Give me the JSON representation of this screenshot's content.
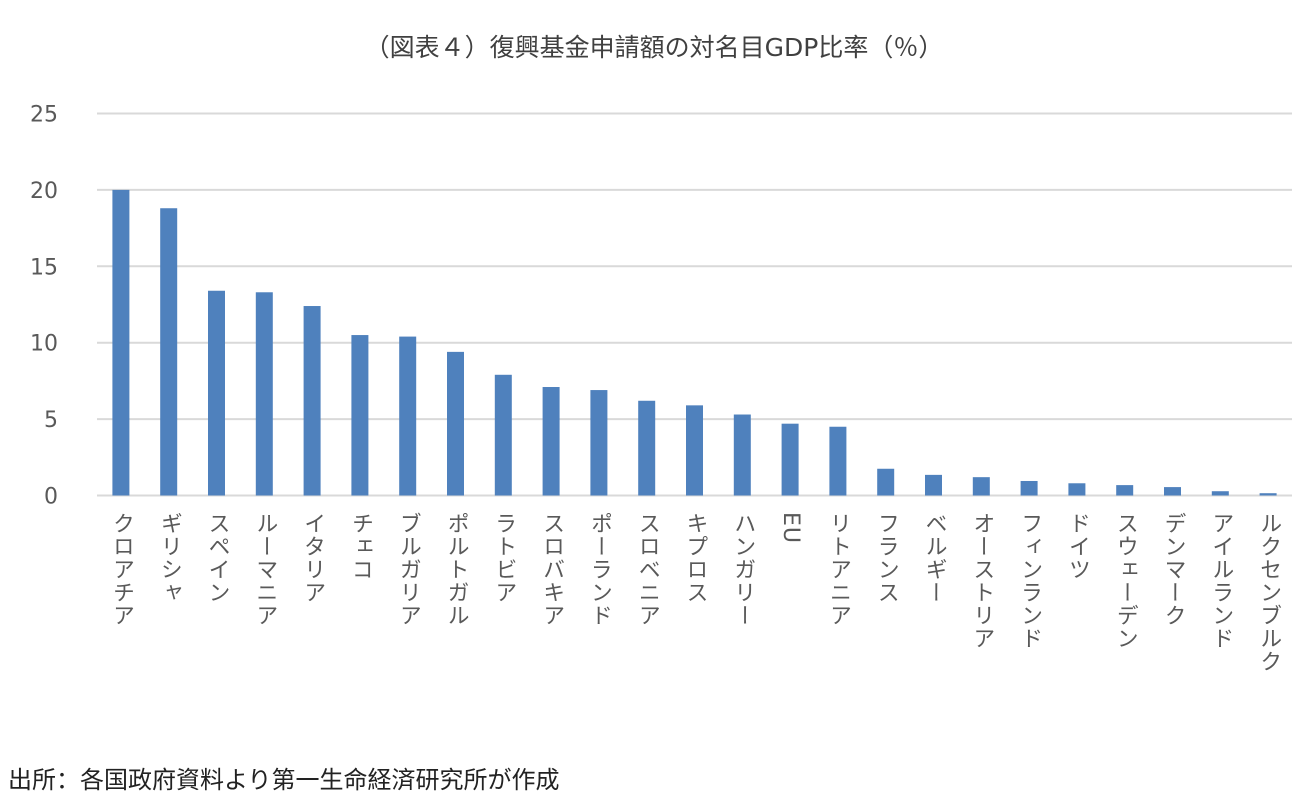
{
  "chart_data": {
    "type": "bar",
    "title": "（図表４）復興基金申請額の対名目GDP比率（％）",
    "xlabel": "",
    "ylabel": "",
    "ylim": [
      0,
      25
    ],
    "yticks": [
      0,
      5,
      10,
      15,
      20,
      25
    ],
    "grid": true,
    "color": "#4F81BD",
    "categories": [
      "クロアチア",
      "ギリシャ",
      "スペイン",
      "ルーマニア",
      "イタリア",
      "チェコ",
      "ブルガリア",
      "ポルトガル",
      "ラトビア",
      "スロバキア",
      "ポーランド",
      "スロベニア",
      "キプロス",
      "ハンガリー",
      "EU",
      "リトアニア",
      "フランス",
      "ベルギー",
      "オーストリア",
      "フィンランド",
      "ドイツ",
      "スウェーデン",
      "デンマーク",
      "アイルランド",
      "ルクセンブルク"
    ],
    "values": [
      20.0,
      18.8,
      13.4,
      13.3,
      12.4,
      10.5,
      10.4,
      9.4,
      7.9,
      7.1,
      6.9,
      6.2,
      5.9,
      5.3,
      4.7,
      4.5,
      1.75,
      1.35,
      1.2,
      0.95,
      0.8,
      0.68,
      0.55,
      0.28,
      0.15
    ]
  },
  "source": "出所：各国政府資料より第一生命経済研究所が作成"
}
